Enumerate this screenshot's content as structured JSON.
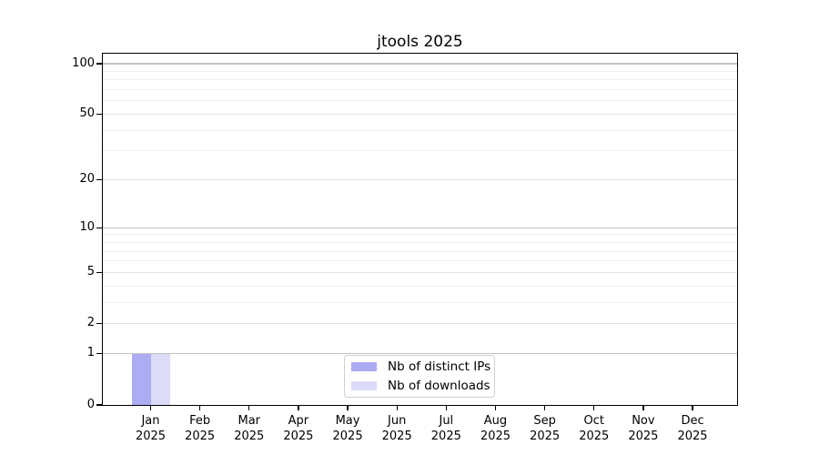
{
  "chart_data": {
    "type": "bar",
    "title": "jtools 2025",
    "categories": [
      "Jan 2025",
      "Feb 2025",
      "Mar 2025",
      "Apr 2025",
      "May 2025",
      "Jun 2025",
      "Jul 2025",
      "Aug 2025",
      "Sep 2025",
      "Oct 2025",
      "Nov 2025",
      "Dec 2025"
    ],
    "series": [
      {
        "name": "Nb of distinct IPs",
        "color": "#acacf2",
        "values": [
          1,
          0,
          0,
          0,
          0,
          0,
          0,
          0,
          0,
          0,
          0,
          0
        ]
      },
      {
        "name": "Nb of downloads",
        "color": "#dcdcf8",
        "values": [
          1,
          0,
          0,
          0,
          0,
          0,
          0,
          0,
          0,
          0,
          0,
          0
        ]
      }
    ],
    "xlabel": "",
    "ylabel": "",
    "ylim": [
      0,
      114
    ],
    "yscale": "log10(1+y)",
    "y_tick_values": [
      0,
      1,
      2,
      5,
      10,
      20,
      50,
      100
    ],
    "y_major_gridlines": [
      1,
      10,
      100
    ],
    "y_labeled_minor_gridlines": [
      2,
      5,
      20,
      50
    ],
    "y_minor_gridlines": [
      3,
      4,
      6,
      7,
      8,
      9,
      30,
      40,
      60,
      70,
      80,
      90
    ],
    "grid": true,
    "legend_position": "lower center"
  },
  "colors": {
    "background": "#ffffff",
    "axis": "#000000",
    "major_grid": "#c2c2c2",
    "labeled_grid": "#e3e3e3",
    "minor_grid": "#efefef",
    "bar_distinct_ips": "#acacf2",
    "bar_downloads": "#dcdcf8",
    "legend_border": "#d0d0d0"
  }
}
